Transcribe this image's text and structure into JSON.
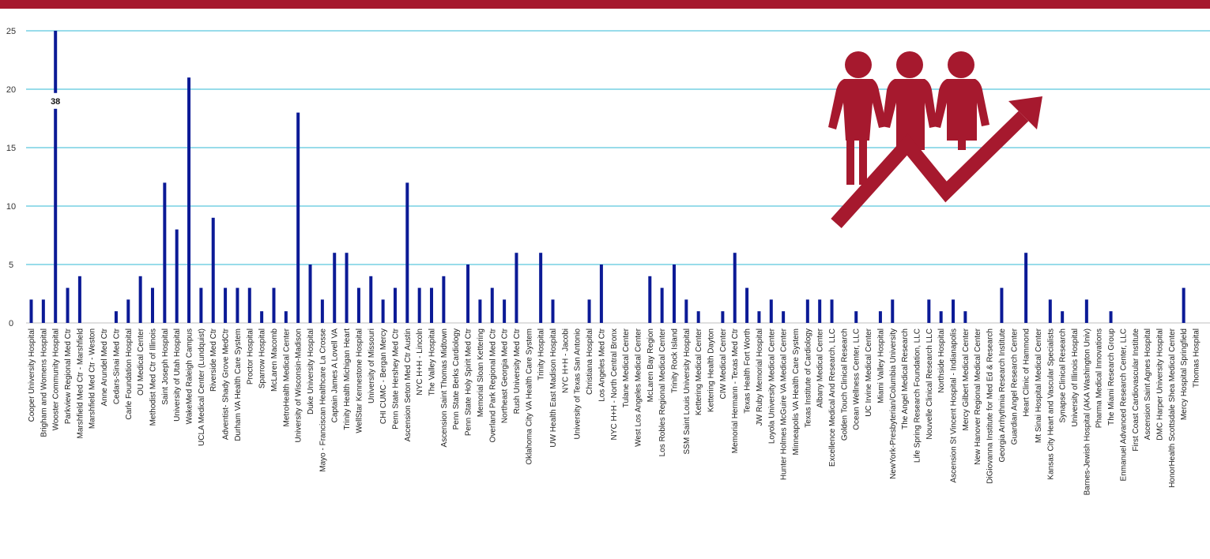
{
  "theme": {
    "band_color": "#A6192E",
    "bar_color": "#0B1A96",
    "grid_color": "#5BC8DE",
    "icon_color": "#A6192E"
  },
  "icon": {
    "name": "people-growth-icon"
  },
  "chart_data": {
    "type": "bar",
    "title": "",
    "xlabel": "",
    "ylabel": "",
    "ylim": [
      0,
      25
    ],
    "yticks": [
      0,
      5,
      10,
      15,
      20,
      25
    ],
    "grid": true,
    "legend": "none",
    "axis_break": {
      "category": "Wooster Community Hospital",
      "label": "38",
      "break_at": 19
    },
    "categories": [
      "Cooper University Hospital",
      "Brigham and Womens Hospital",
      "Wooster Community Hospital",
      "Parkview Regional Med Ctr",
      "Marshfield Med Ctr - Marshfield",
      "Marshfield Med Ctr - Weston",
      "Anne Arundel Med Ctr",
      "Cedars-Sinai Med Ctr",
      "Carle Foundation Hospital",
      "OU Medical Center",
      "Methodist Med Ctr of Illinois",
      "Saint Joseph Hospital",
      "University of Utah Hospital",
      "WakeMed Raleigh Campus",
      "UCLA Medical Center (Lundquist)",
      "Riverside Med Ctr",
      "Adventist- Shady Grove MedCtr",
      "Durham VA Health Care System",
      "Proctor Hospital",
      "Sparrow Hospital",
      "McLaren Macomb",
      "MetroHealth Medical Center",
      "University of Wisconsin-Madison",
      "Duke University Hospital",
      "Mayo - Franciscan Healthcare La Crosse",
      "Captain James A Lovell VA",
      "Trinity Health Michigan Heart",
      "WellStar Kennestone Hospital",
      "University of Missouri",
      "CHI CUMC - Bergan Mercy",
      "Penn State Hershey Med Ctr",
      "Ascension Seton Med Ctr Austin",
      "NYC H+H - Lincoln",
      "The Valley Hospital",
      "Ascension Saint Thomas Midtown",
      "Penn State Berks Cardiology",
      "Penn State Holy Spirit Med Ctr",
      "Memorial Sloan Kettering",
      "Overland Park Regional Med Ctr",
      "Northeast Georgia Med Ctr",
      "Rush University Med Ctr",
      "Oklahoma City VA Health Care System",
      "Trinity Hospital",
      "UW Health East Madison Hospital",
      "NYC H+H - Jacobi",
      "University of Texas San Antonio",
      "Christiana Hospital",
      "Los Angeles Med Ctr",
      "NYC H+H - North Central Bronx",
      "Tulane Medical Center",
      "West Los Angeles Medical Center",
      "McLaren Bay Region",
      "Los Robles Regional Medical Center",
      "Trinity Rock Island",
      "SSM Saint Louis University Hospital",
      "Kettering Medical Center",
      "Kettering Health Dayton",
      "CIW Medical Center",
      "Memorial Hermann - Texas Med Ctr",
      "Texas Health Fort Worth",
      "JW Ruby Memorial Hospital",
      "Loyola University Medical Center",
      "Hunter Holmes McGuire VA Medical Center",
      "Minneapolis VA Health Care System",
      "Texas Institute of Cardiology",
      "Albany Medical Center",
      "Excellence Medical And Research, LLC",
      "Golden Touch Clinical Research",
      "Ocean Wellness Center, LLC",
      "UC Irvine Medical Center",
      "Miami Valley Hospital",
      "NewYork-Presbyterian/Columbia University",
      "The Angel Medical Research",
      "Life Spring Research Foundation, LLC",
      "Nouvelle Clinical Research LLC",
      "Northside Hospital",
      "Ascension St Vincent Hospital - Indianapolis",
      "Mercy Gilbert Medical Center",
      "New Hanover Regional Medical Center",
      "DiGiovanna Institute for Med Ed & Research",
      "Georgia Arrhythmia Research Institute",
      "Guardian Angel Research Center",
      "Heart Clinic of Hammond",
      "Mt Sinai Hospital Medical Center",
      "Kansas City Heart and Vascular Specialists",
      "Synapse Clinical Research",
      "University of Illinois Hospital",
      "Barnes-Jewish Hospital (AKA Washington Univ)",
      "Pharma Medical Innovations",
      "The Miami Research Group",
      "Enmanuel Advanced Research Center, LLC",
      "First Coast Cardiovascular Institute",
      "Ascension Saint Agnes Hospital",
      "DMC Harper University Hospital",
      "HonorHealth Scottsdale Shea Medical Center",
      "Mercy Hospital Springfield",
      "Thomas Hospital"
    ],
    "values": [
      2,
      2,
      38,
      3,
      4,
      0,
      0,
      1,
      2,
      4,
      3,
      12,
      8,
      21,
      3,
      9,
      3,
      3,
      3,
      1,
      3,
      1,
      18,
      5,
      2,
      6,
      6,
      3,
      4,
      2,
      3,
      12,
      3,
      3,
      4,
      0,
      5,
      2,
      3,
      2,
      6,
      0,
      6,
      2,
      0,
      0,
      2,
      5,
      0,
      0,
      0,
      4,
      3,
      5,
      2,
      1,
      0,
      1,
      6,
      3,
      1,
      2,
      1,
      0,
      2,
      2,
      2,
      0,
      1,
      0,
      1,
      2,
      0,
      0,
      2,
      1,
      2,
      1,
      0,
      0,
      3,
      0,
      6,
      0,
      2,
      1,
      0,
      2,
      0,
      1,
      0,
      0,
      0,
      0,
      0,
      3,
      0
    ]
  }
}
